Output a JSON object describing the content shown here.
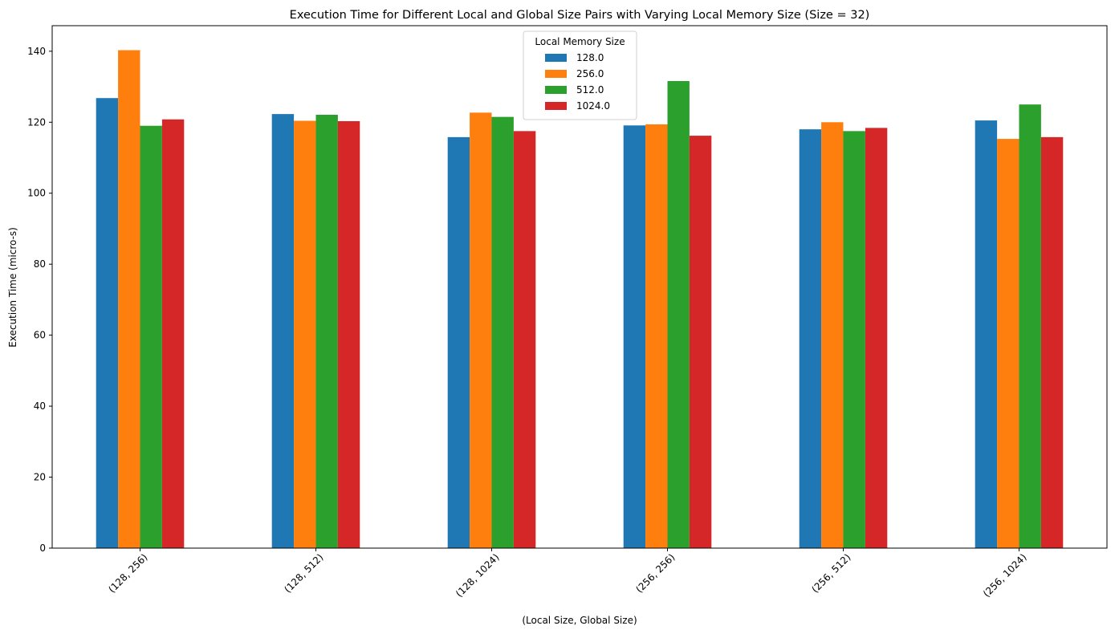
{
  "chart_data": {
    "type": "bar",
    "title": "Execution Time for Different Local and Global Size Pairs with Varying Local Memory Size (Size = 32)",
    "xlabel": "(Local Size, Global Size)",
    "ylabel": "Execution Time (micro-s)",
    "ylim": [
      0,
      147.2
    ],
    "yticks": [
      0,
      20,
      40,
      60,
      80,
      100,
      120,
      140
    ],
    "categories": [
      "(128, 256)",
      "(128, 512)",
      "(128, 1024)",
      "(256, 256)",
      "(256, 512)",
      "(256, 1024)"
    ],
    "legend": {
      "title": "Local Memory Size",
      "position": "upper center"
    },
    "series": [
      {
        "name": "128.0",
        "color": "#1f77b4",
        "values": [
          126.8,
          122.3,
          115.8,
          119.1,
          118.0,
          120.5
        ]
      },
      {
        "name": "256.0",
        "color": "#ff7f0e",
        "values": [
          140.3,
          120.4,
          122.7,
          119.4,
          120.0,
          115.3
        ]
      },
      {
        "name": "512.0",
        "color": "#2ca02c",
        "values": [
          119.0,
          122.1,
          121.5,
          131.6,
          117.5,
          125.0
        ]
      },
      {
        "name": "1024.0",
        "color": "#d62728",
        "values": [
          120.8,
          120.3,
          117.5,
          116.2,
          118.4,
          115.8
        ]
      }
    ],
    "grid": false
  }
}
